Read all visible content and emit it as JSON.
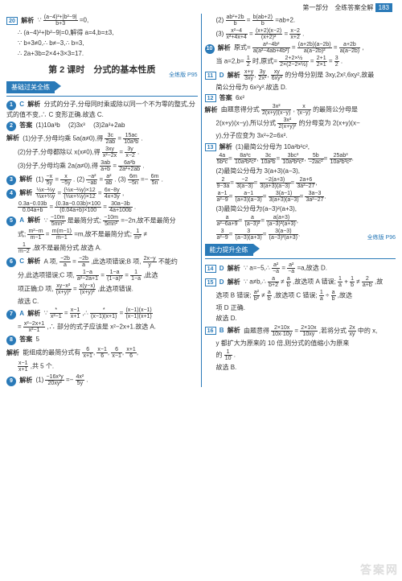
{
  "header": {
    "part": "第一部分　全练答案全解",
    "page": "183"
  },
  "title": "第 2 课时　分式的基本性质",
  "bars": {
    "basic": "基础过关全练",
    "ability": "能力提升全练",
    "ref1": "全练版 P95",
    "ref2": "全练版 P96"
  },
  "left": {
    "q20": {
      "num": "20",
      "label": "解析",
      "l1": "∵",
      "f1n": "(a−4)²+|b²−9|",
      "f1d": "b+3",
      "l2": "=0,",
      "l3": "∴ (a−4)²+|b²−9|=0,解得 a=4,b=±3,",
      "l4": "∵ b+3≠0,∴ b≠−3,∴ b=3,",
      "l5": "∴ 2a+3b=2×4+3×3=17."
    },
    "q1": {
      "num": "1",
      "ans": "C",
      "label": "解析",
      "text": "分式的分子,分母同时乘或除以同一个不为零的整式,分式的值不变,∴ C 变形正确.故选 C."
    },
    "q2": {
      "num": "2",
      "label": "答案",
      "a1": "(1)10a³b",
      "a2": "(2)3x³",
      "a3": "(3)2a²+2ab",
      "p1a": "(1)分子,分母均乘 5a(a≠0),得",
      "p1f1n": "3c",
      "p1f1d": "2ab",
      "p1m": "=",
      "p1f2n": "15ac",
      "p1f2d": "10a³b",
      "p1e": ".",
      "p2a": "(2)分子,分母都除以 x(x≠0),得",
      "p2f1n": "3xy",
      "p2f1d": "x²−2x",
      "p2m": "=",
      "p2f2n": "3y",
      "p2f2d": "x−2",
      "p2e": ".",
      "p3a": "(3)分子,分母均乘 2a(a≠0),得",
      "p3f1n": "3ab",
      "p3f1d": "a+b",
      "p3m": "=",
      "p3f2n": "6a²b",
      "p3f2d": "2a²+2ab",
      "p3e": "."
    },
    "q3": {
      "num": "3",
      "label": "解析",
      "p1": "(1)",
      "f1n": "−x",
      "f1d": "5y",
      "m1": "=",
      "f2n": "x",
      "f2d": "−5y",
      "p2": ". (2)",
      "f3n": "−a²",
      "f3d": "−ab",
      "m2": "=",
      "f4n": "a²",
      "f4d": "ab",
      "p3": ". (3)",
      "f5n": "6m",
      "f5d": "−5n",
      "m3": "=−",
      "f6n": "6m",
      "f6d": "5n",
      "e": "."
    },
    "q4": {
      "num": "4",
      "label": "解析",
      "r1a": "",
      "r1f1n": "½x−⅔y",
      "r1f1d": "⅓x+¼y",
      "r1m": "=",
      "r1f2n": "(½x−⅔y)×12",
      "r1f2d": "(⅓x+¼y)×12",
      "r1m2": "=",
      "r1f3n": "6x−8y",
      "r1f3d": "4x+3y",
      "r1e": ",",
      "r2a": "",
      "r2f1n": "0.3a−0.03b",
      "r2f1d": "0.04a+b",
      "r2m": "=",
      "r2f2n": "(0.3a−0.03b)×100",
      "r2f2d": "(0.04a+b)×100",
      "r2m2": "=",
      "r2f3n": "30a−3b",
      "r2f3d": "4a+100b",
      "r2e": "."
    },
    "q5": {
      "num": "5",
      "ans": "A",
      "label": "解析",
      "l1a": "∵",
      "l1f1n": "−10m",
      "l1f1d": "5mn²",
      "l1b": "是最简分式;",
      "l1f2n": "−10m",
      "l1f2d": "5mn²",
      "l1c": "=−2n,故不是最简分",
      "l2a": "式;",
      "l2f1n": "m²−m",
      "l2f1d": "m−1",
      "l2m1": "=",
      "l2f2n": "m(m−1)",
      "l2f2d": "m−1",
      "l2b": "=m,故不是最简分式;",
      "l2f3n": "1",
      "l2f3d": "m²",
      "l2c": "≠",
      "l3a": "",
      "l3f1n": "1",
      "l3f1d": "m−2",
      "l3b": ",故不是最简分式.故选 A."
    },
    "q6": {
      "num": "6",
      "ans": "C",
      "label": "解析",
      "l1a": "A 项,",
      "l1f1n": "−2b",
      "l1f1d": "a",
      "l1b": "=",
      "l1f2n": "−2b",
      "l1f2d": "a",
      "l1c": ",此选项错误;B 项,",
      "l1f3n": "2x−y",
      "l1f3d": "y",
      "l1d": "不能约",
      "l2a": "分,此选项错误;C 项,",
      "l2f1n": "1−a",
      "l2f1d": "a²−2a+1",
      "l2b": "=",
      "l2f2n": "1−a",
      "l2f2d": "(1−a)²",
      "l2c": "=",
      "l2f3n": "1",
      "l2f3d": "1−a",
      "l2d": ",此选",
      "l3a": "项正确;D 项,",
      "l3f1n": "xy−x²",
      "l3f1d": "(x+y)²",
      "l3b": "=",
      "l3f2n": "x(y−x)",
      "l3f2d": "(x+y)²",
      "l3c": ",此选项错误.",
      "l4": "故选 C."
    },
    "q7": {
      "num": "7",
      "ans": "A",
      "label": "解析",
      "l1a": "∵",
      "l1f1n": "*",
      "l1f1d": "x²−1",
      "l1b": "=",
      "l1f2n": "x−1",
      "l1f2d": "x+1",
      "l1c": ",∴",
      "l1f3n": "*",
      "l1f3d": "(x−1)(x+1)",
      "l1d": "=",
      "l1f4n": "(x−1)(x−1)",
      "l1f4d": "(x−1)(x+1)",
      "l2a": "=",
      "l2f1n": "x²−2x+1",
      "l2f1d": "x²−1",
      "l2b": ",∴ 部分的式子应该是 x²−2x+1.故选 A."
    },
    "q8": {
      "num": "8",
      "label": "答案",
      "text": "5",
      "p1a": "能组成的最简分式有",
      "p1f1n": "6",
      "p1f1d": "x+1",
      "c1": ",",
      "p1f2n": "x−1",
      "p1f2d": "6",
      "c2": ",",
      "p1f3n": "6",
      "p1f3d": "x−1",
      "c3": ",",
      "p1f4n": "x+1",
      "p1f4d": "6",
      "c4": ",",
      "p2f1n": "x−1",
      "p2f1d": "x+1",
      "p2b": ",共 5 个."
    },
    "q9": {
      "num": "9",
      "label": "解析",
      "p1": "(1)",
      "f1n": "−16x³y",
      "f1d": "20xy²",
      "m": "=−",
      "f2n": "4x²",
      "f2d": "5y",
      "e": "."
    }
  },
  "right": {
    "q9b": {
      "p1": "(2)",
      "f1n": "ab²+2b",
      "f1d": "b",
      "m1": "=",
      "f2n": "b(ab+2)",
      "f2d": "b",
      "e1": "=ab+2.",
      "p2": "(3)",
      "f3n": "x²−4",
      "f3d": "x²+4x+4",
      "m2": "=",
      "f4n": "(x+2)(x−2)",
      "f4d": "(x+2)²",
      "m3": "=",
      "f5n": "x−2",
      "f5d": "x+2",
      "e2": "."
    },
    "q10": {
      "num": "10",
      "label": "解析",
      "l1a": "原式=",
      "l1f1n": "a²−4b²",
      "l1f1d": "a(a²−4ab+4b²)",
      "l1m": "=",
      "l1f2n": "(a+2b)(a−2b)",
      "l1f2d": "a(a−2b)²",
      "l1m2": "=",
      "l1f3n": "a+2b",
      "l1f3d": "a(a−2b)",
      "l1e": ",",
      "l2a": "当 a=2,b=",
      "l2f1n": "1",
      "l2f1d": "2",
      "l2b": "时,原式=",
      "l2f2n": "2+2×½",
      "l2f2d": "2×(2−2×½)",
      "l2m": "=",
      "l2f3n": "2+1",
      "l2f3d": "2×1",
      "l2m2": "=",
      "l2f4n": "3",
      "l2f4d": "2",
      "l2e": "."
    },
    "q11": {
      "num": "11",
      "ans": "D",
      "label": "解析",
      "l1a": "",
      "l1f1n": "x+y",
      "l1f1d": "3xy",
      "c1": ",",
      "l1f2n": "3y",
      "l1f2d": "2x²",
      "c2": ",",
      "l1f3n": "xy",
      "l1f3d": "6xy²",
      "l1b": "的分母分别是 3xy,2x²,6xy²,故最",
      "l2": "简公分母为 6x²y².故选 D."
    },
    "q12": {
      "num": "12",
      "label": "答案",
      "text": "6x²",
      "p1a": "由题意得分式",
      "p1f1n": "3x²",
      "p1f1d": "2(x+y)(x−y)",
      "p1b": ",",
      "p1f2n": "x",
      "p1f2d": "(x−y)",
      "p1c": "的最简公分母是",
      "p2a": "2(x+y)(x−y),所以分式",
      "p2f1n": "3x²",
      "p2f1d": "2(x+y)²",
      "p2b": "的分母变为 2(x+y)(x−",
      "p3": "y),分子应变为 3x²÷2=6x²."
    },
    "q13": {
      "num": "13",
      "label": "解析",
      "l1": "(1)最简公分母为 10a²b²c²,",
      "l2a": "",
      "l2f1n": "4a",
      "l2f1d": "5b²c",
      "l2m1": "=",
      "l2f2n": "8a³c",
      "l2f2d": "10a²b²c²",
      "c1": ",",
      "l2f3n": "3c",
      "l2f3d": "10a²b",
      "l2m2": "=",
      "l2f4n": "3bc³",
      "l2f4d": "10a²b²c²",
      "c2": ",",
      "l2f5n": "5b",
      "l2f5d": "−2ac²",
      "l2m3": "=",
      "l2f6n": "25ab³",
      "l2f6d": "10a²b²c²",
      "e1": ".",
      "l3": "(2)最简公分母为 3(a+3)(a−3),",
      "l4a": "",
      "l4f1n": "2",
      "l4f1d": "9−3a",
      "l4m1": "=",
      "l4f2n": "−2",
      "l4f2d": "3(a−3)",
      "l4m2": "=",
      "l4f3n": "−2(a+3)",
      "l4f3d": "3(a+3)(a−3)",
      "l4m3": "=",
      "l4f4n": "2a+6",
      "l4f4d": "3a²−27",
      "e2": ",",
      "l5a": "",
      "l5f1n": "a−1",
      "l5f1d": "a²−9",
      "l5m1": "=",
      "l5f2n": "a−1",
      "l5f2d": "(a+3)(a−3)",
      "l5m2": "=",
      "l5f3n": "3(a−1)",
      "l5f3d": "3(a+3)(a−3)",
      "l5m3": "=",
      "l5f4n": "3a−3",
      "l5f4d": "3a²−27",
      "e3": ".",
      "l6": "(3)最简公分母为(a−3)²(a+3),",
      "l7a": "",
      "l7f1n": "a",
      "l7f1d": "a²−6a+9",
      "l7m1": "=",
      "l7f2n": "a",
      "l7f2d": "(a−3)²",
      "l7m2": "=",
      "l7f3n": "a(a+3)",
      "l7f3d": "(a−3)²(a+3)",
      "e4": ",",
      "l8a": "",
      "l8f1n": "3",
      "l8f1d": "a²−9",
      "l8m1": "=",
      "l8f2n": "3",
      "l8f2d": "(a−3)(a+3)",
      "l8m2": "=",
      "l8f3n": "3(a−3)",
      "l8f3d": "(a−3)²(a+3)",
      "e5": "."
    },
    "q14": {
      "num": "14",
      "ans": "D",
      "label": "解析",
      "a": "∵ a=−5,∴",
      "f1n": "a²",
      "f1d": "−a",
      "b": "=",
      "f2n": "a²",
      "f2d": "−a",
      "c": "=a,故选 D."
    },
    "q15": {
      "num": "15",
      "ans": "D",
      "label": "解析",
      "l1a": "∵ a≠b,∴",
      "l1f1n": "a",
      "l1f1d": "b+2",
      "l1b": "≠",
      "l1f2n": "a",
      "l1f2d": "b",
      "l1c": ",故选项 A 错误;",
      "l1f3n": "1",
      "l1f3d": "a",
      "l1d": "+",
      "l1f4n": "1",
      "l1f4d": "b",
      "l1e": "≠",
      "l1f5n": "2",
      "l1f5d": "a+b",
      "l1f": ",故",
      "l2a": "选项 B 错误;",
      "l2f1n": "a²",
      "l2f1d": "b²",
      "l2b": "≠",
      "l2f2n": "a",
      "l2f2d": "b",
      "l2c": ",故选项 C 错误;",
      "l2f3n": "1",
      "l2f3d": "a",
      "l2d": "÷",
      "l2f4n": "a",
      "l2f4d": "b",
      "l2e": ",故选",
      "l3": "项 D 正确.",
      "l4": "故选 D."
    },
    "q16": {
      "num": "16",
      "ans": "B",
      "label": "解析",
      "l1a": "由题意得",
      "l1f1n": "2×10x",
      "l1f1d": "10x·10y",
      "l1m": "=",
      "l1f2n": "2×10x",
      "l1f2d": "10xy",
      "l1b": ",若将分式",
      "l1f3n": "2x",
      "l1f3d": "xy",
      "l1c": "中的 x,",
      "l2": "y 都扩大为原来的 10 倍,则分式的值缩小为原来",
      "l3a": "的",
      "l3f1n": "1",
      "l3f1d": "10",
      "l3b": ".",
      "l4": "故选 B."
    }
  },
  "watermark": "答案网"
}
